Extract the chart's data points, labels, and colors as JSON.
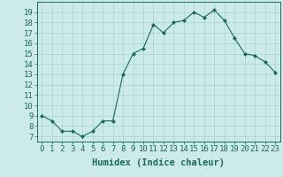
{
  "x": [
    0,
    1,
    2,
    3,
    4,
    5,
    6,
    7,
    8,
    9,
    10,
    11,
    12,
    13,
    14,
    15,
    16,
    17,
    18,
    19,
    20,
    21,
    22,
    23
  ],
  "y": [
    9,
    8.5,
    7.5,
    7.5,
    7,
    7.5,
    8.5,
    8.5,
    13,
    15,
    15.5,
    17.8,
    17,
    18,
    18.2,
    19,
    18.5,
    19.2,
    18.2,
    16.5,
    15,
    14.8,
    14.2,
    13.2
  ],
  "line_color": "#1a6b5a",
  "marker_color": "#1a6b5a",
  "bg_color": "#cceae7",
  "grid_color": "#aad4d0",
  "axis_color": "#1a6b5a",
  "xlabel": "Humidex (Indice chaleur)",
  "xlim": [
    -0.5,
    23.5
  ],
  "ylim": [
    6.5,
    20
  ],
  "yticks": [
    7,
    8,
    9,
    10,
    11,
    12,
    13,
    14,
    15,
    16,
    17,
    18,
    19
  ],
  "xticks": [
    0,
    1,
    2,
    3,
    4,
    5,
    6,
    7,
    8,
    9,
    10,
    11,
    12,
    13,
    14,
    15,
    16,
    17,
    18,
    19,
    20,
    21,
    22,
    23
  ],
  "tick_label_fontsize": 6.5,
  "xlabel_fontsize": 7.5
}
